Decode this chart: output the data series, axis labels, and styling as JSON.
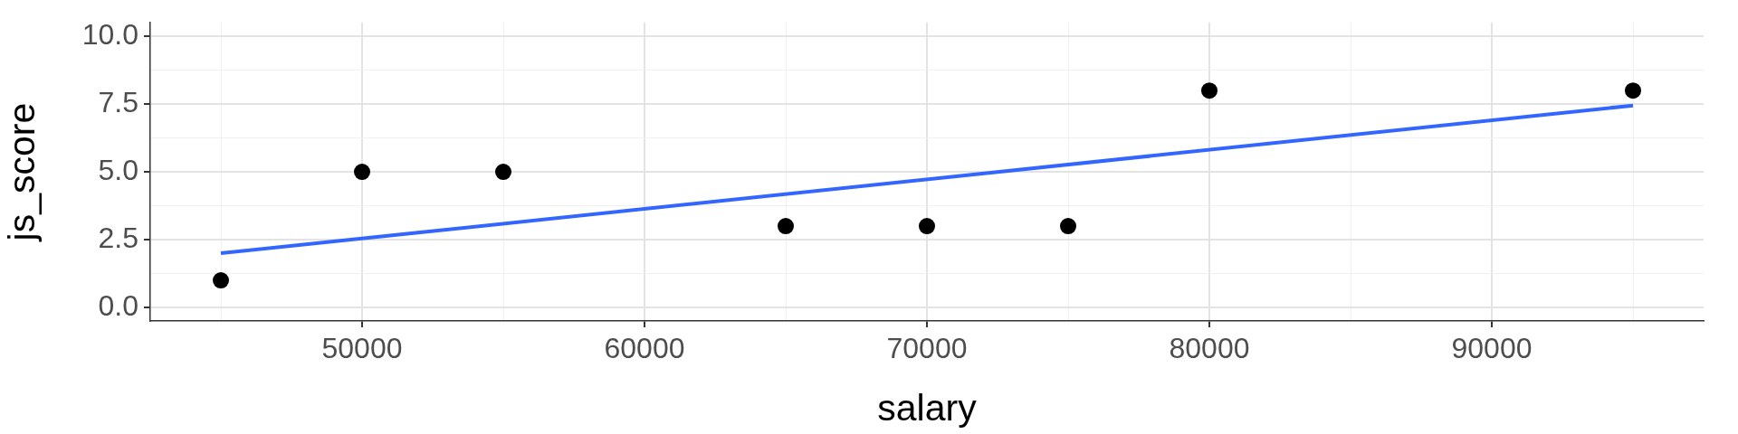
{
  "chart_data": {
    "type": "scatter",
    "xlabel": "salary",
    "ylabel": "js_score",
    "xlim": [
      42500,
      97500
    ],
    "xticks": [
      {
        "value": 45000,
        "label": null
      },
      50000,
      {
        "value": 55000,
        "label": null
      },
      60000,
      {
        "value": 65000,
        "label": null
      },
      70000,
      {
        "value": 75000,
        "label": null
      },
      80000,
      {
        "value": 85000,
        "label": null
      },
      90000,
      {
        "value": 95000,
        "label": null
      }
    ],
    "ylim": [
      -0.5,
      10.5
    ],
    "yticks": [
      {
        "value": 0,
        "label": "0.0"
      },
      {
        "value": 1.25,
        "label": null
      },
      {
        "value": 2.5,
        "label": "2.5"
      },
      {
        "value": 3.75,
        "label": null
      },
      {
        "value": 5,
        "label": "5.0"
      },
      {
        "value": 6.25,
        "label": null
      },
      {
        "value": 7.5,
        "label": "7.5"
      },
      {
        "value": 8.75,
        "label": null
      },
      {
        "value": 10,
        "label": "10.0"
      }
    ],
    "grid": true,
    "legend": false,
    "marker": "circle",
    "series": [
      {
        "type": "scatter",
        "color": "#000000",
        "x": [
          45000,
          50000,
          55000,
          65000,
          70000,
          75000,
          80000,
          95000
        ],
        "values": [
          1,
          5,
          5,
          3,
          3,
          3,
          8,
          8
        ]
      },
      {
        "type": "line",
        "color": "#3366ff",
        "x": [
          45000,
          95000
        ],
        "values": [
          2.0,
          7.45
        ],
        "marker": "none",
        "line_style": "solid"
      }
    ]
  }
}
